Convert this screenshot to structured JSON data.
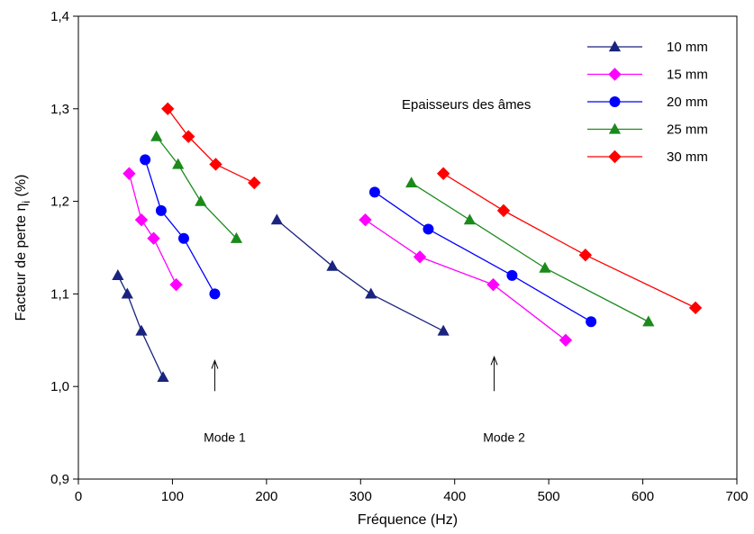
{
  "chart_data": {
    "type": "line",
    "xlabel": "Fréquence (Hz)",
    "ylabel": "Facteur de perte η",
    "ylabel_subscript": "i",
    "ylabel_unit": " (%)",
    "xlim": [
      0,
      700
    ],
    "ylim": [
      0.9,
      1.4
    ],
    "xticks": [
      0,
      100,
      200,
      300,
      400,
      500,
      600,
      700
    ],
    "xtick_labels": [
      "0",
      "100",
      "200",
      "300",
      "400",
      "500",
      "600",
      "700"
    ],
    "yticks": [
      0.9,
      1.0,
      1.1,
      1.2,
      1.3,
      1.4
    ],
    "ytick_labels": [
      "0,9",
      "1,0",
      "1,1",
      "1,2",
      "1,3",
      "1,4"
    ],
    "grid": false,
    "legend_position": "top-right",
    "legend_title": "Epaisseurs des âmes",
    "series": [
      {
        "name": "10 mm",
        "color": "#1a237e",
        "marker": "triangle",
        "segments": [
          {
            "x": [
              42,
              52,
              67,
              90
            ],
            "y": [
              1.12,
              1.1,
              1.06,
              1.01
            ]
          },
          {
            "x": [
              211,
              270,
              311,
              388
            ],
            "y": [
              1.18,
              1.13,
              1.1,
              1.06
            ]
          }
        ]
      },
      {
        "name": "15 mm",
        "color": "#ff00ff",
        "marker": "diamond",
        "segments": [
          {
            "x": [
              54,
              67,
              80,
              104
            ],
            "y": [
              1.23,
              1.18,
              1.16,
              1.11
            ]
          },
          {
            "x": [
              305,
              363,
              441,
              518
            ],
            "y": [
              1.18,
              1.14,
              1.11,
              1.05
            ]
          }
        ]
      },
      {
        "name": "20 mm",
        "color": "#0000ff",
        "marker": "circle",
        "segments": [
          {
            "x": [
              71,
              88,
              112,
              145
            ],
            "y": [
              1.245,
              1.19,
              1.16,
              1.1
            ]
          },
          {
            "x": [
              315,
              372,
              461,
              545
            ],
            "y": [
              1.21,
              1.17,
              1.12,
              1.07
            ]
          }
        ]
      },
      {
        "name": "25 mm",
        "color": "#1b8a1b",
        "marker": "triangle",
        "segments": [
          {
            "x": [
              83,
              106,
              130,
              168
            ],
            "y": [
              1.27,
              1.24,
              1.2,
              1.16
            ]
          },
          {
            "x": [
              354,
              416,
              496,
              606
            ],
            "y": [
              1.22,
              1.18,
              1.128,
              1.07
            ]
          }
        ]
      },
      {
        "name": "30 mm",
        "color": "#ff0000",
        "marker": "diamond",
        "segments": [
          {
            "x": [
              95,
              117,
              146,
              187
            ],
            "y": [
              1.3,
              1.27,
              1.24,
              1.22
            ]
          },
          {
            "x": [
              388,
              452,
              539,
              656
            ],
            "y": [
              1.23,
              1.19,
              1.142,
              1.085
            ]
          }
        ]
      }
    ],
    "annotations": [
      {
        "text": "Mode 1",
        "x": 145,
        "y": 0.945,
        "arrow_from": 0.995,
        "arrow_to": 1.028
      },
      {
        "text": "Mode 2",
        "x": 442,
        "y": 0.945,
        "arrow_from": 0.995,
        "arrow_to": 1.032
      }
    ]
  }
}
